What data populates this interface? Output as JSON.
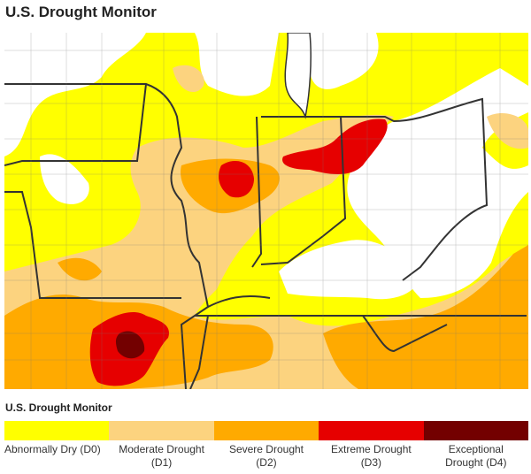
{
  "title": "U.S. Drought Monitor",
  "legend": {
    "title": "U.S. Drought Monitor",
    "items": [
      {
        "lines": [
          "Abnormally Dry (D0)"
        ],
        "color": "#ffff00"
      },
      {
        "lines": [
          "Moderate Drought",
          "(D1)"
        ],
        "color": "#fcd37f"
      },
      {
        "lines": [
          "Severe Drought",
          "(D2)"
        ],
        "color": "#ffaa00"
      },
      {
        "lines": [
          "Extreme Drought",
          "(D3)"
        ],
        "color": "#e60000"
      },
      {
        "lines": [
          "Exceptional",
          "Drought (D4)"
        ],
        "color": "#730000"
      }
    ]
  }
}
